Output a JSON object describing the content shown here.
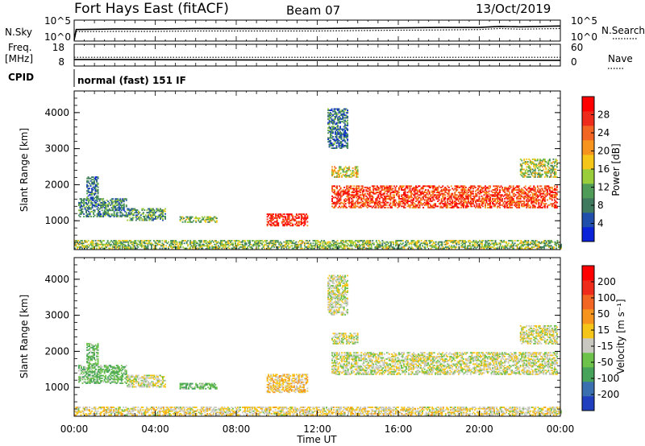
{
  "header": {
    "radar": "Fort Hays East (fitACF)",
    "beam": "Beam 07",
    "date": "13/Oct/2019"
  },
  "left_labels": {
    "nsky": "N.Sky",
    "freq_line1": "Freq.",
    "freq_line2": "[MHz]",
    "cpid": "CPID"
  },
  "right_labels": {
    "nsearch": "N.Search",
    "nave": "Nave"
  },
  "cpid_text": "normal (fast) 151 IF",
  "x_axis": {
    "title": "Time UT",
    "ticks": [
      "00:00",
      "04:00",
      "08:00",
      "12:00",
      "16:00",
      "20:00",
      "00:00"
    ]
  },
  "chart_data": [
    {
      "type": "line",
      "name": "noise panel",
      "left_ticks": [
        "10^5",
        "10^0"
      ],
      "right_ticks": [
        "10^5",
        "10^0"
      ],
      "x_hours": [
        0,
        0.1,
        2,
        4,
        6,
        8,
        10,
        12,
        14,
        16,
        18,
        20,
        21,
        22,
        24
      ],
      "series": [
        {
          "name": "N.Sky",
          "style": "solid",
          "values": [
            0.05,
            0.55,
            0.58,
            0.58,
            0.6,
            0.6,
            0.6,
            0.6,
            0.62,
            0.63,
            0.65,
            0.65,
            0.7,
            0.68,
            0.72
          ]
        },
        {
          "name": "N.Search",
          "style": "dotted",
          "values": [
            0.05,
            0.45,
            0.46,
            0.46,
            0.48,
            0.48,
            0.48,
            0.48,
            0.5,
            0.52,
            0.53,
            0.55,
            0.6,
            0.57,
            0.6
          ]
        }
      ]
    },
    {
      "type": "line",
      "name": "frequency / nave panel",
      "left_ticks": [
        "18",
        "8"
      ],
      "right_ticks": [
        "60",
        "0"
      ],
      "x_hours": [
        0,
        0.2,
        12,
        24
      ],
      "series": [
        {
          "name": "Freq.",
          "style": "solid",
          "values": [
            10.5,
            10.5,
            10.2,
            10.1
          ]
        },
        {
          "name": "Nave",
          "style": "dotted",
          "values": [
            24,
            24,
            24,
            24
          ]
        }
      ]
    },
    {
      "type": "heatmap",
      "name": "power",
      "xlabel": "",
      "ylabel": "Slant Range [km]",
      "xlim": [
        0,
        24
      ],
      "ylim": [
        200,
        4600
      ],
      "yticks": [
        1000,
        2000,
        3000,
        4000
      ],
      "colorbar": {
        "label": "Power [dB]",
        "ticks": [
          "4",
          "8",
          "12",
          "16",
          "20",
          "24",
          "28"
        ],
        "colors": [
          "#0a22d8",
          "#1f4faa",
          "#3f7a5e",
          "#4f9b58",
          "#9acd3a",
          "#f5c518",
          "#f7941d",
          "#f26522",
          "#ef2b1c",
          "#ff0000"
        ]
      },
      "regions": [
        {
          "t0": 0.2,
          "t1": 2.6,
          "r0": 1100,
          "r1": 1600,
          "level": 0.25
        },
        {
          "t0": 0.6,
          "t1": 1.2,
          "r0": 1600,
          "r1": 2200,
          "level": 0.2
        },
        {
          "t0": 2.6,
          "t1": 4.5,
          "r0": 1000,
          "r1": 1350,
          "level": 0.3
        },
        {
          "t0": 5.2,
          "t1": 7.0,
          "r0": 950,
          "r1": 1100,
          "level": 0.4
        },
        {
          "t0": 9.5,
          "t1": 11.5,
          "r0": 850,
          "r1": 1200,
          "level": 0.9
        },
        {
          "t0": 12.7,
          "t1": 23.8,
          "r0": 1350,
          "r1": 1950,
          "level": 0.85
        },
        {
          "t0": 12.7,
          "t1": 14.0,
          "r0": 2200,
          "r1": 2500,
          "level": 0.55
        },
        {
          "t0": 12.5,
          "t1": 13.5,
          "r0": 3000,
          "r1": 4100,
          "level": 0.2
        },
        {
          "t0": 22.0,
          "t1": 23.8,
          "r0": 2200,
          "r1": 2700,
          "level": 0.45
        },
        {
          "t0": 0.0,
          "t1": 24.0,
          "r0": 220,
          "r1": 450,
          "level": 0.4
        }
      ]
    },
    {
      "type": "heatmap",
      "name": "velocity",
      "xlabel": "Time UT",
      "ylabel": "Slant Range [km]",
      "xlim": [
        0,
        24
      ],
      "ylim": [
        200,
        4600
      ],
      "yticks": [
        1000,
        2000,
        3000,
        4000
      ],
      "colorbar": {
        "label": "Velocity [m s⁻¹]",
        "ticks": [
          "200",
          "100",
          "50",
          "15",
          "-15",
          "-50",
          "-100",
          "-200"
        ],
        "colors": [
          "#1f3fbf",
          "#3a6fb0",
          "#47a35a",
          "#6cc24a",
          "#c8c8c0",
          "#f5c518",
          "#f7941d",
          "#f26522",
          "#ef2b1c",
          "#ff0000"
        ]
      },
      "regions": [
        {
          "t0": 0.2,
          "t1": 2.6,
          "r0": 1100,
          "r1": 1600,
          "level": 0.3
        },
        {
          "t0": 0.6,
          "t1": 1.2,
          "r0": 1600,
          "r1": 2200,
          "level": 0.3
        },
        {
          "t0": 2.6,
          "t1": 4.5,
          "r0": 1000,
          "r1": 1350,
          "level": 0.45
        },
        {
          "t0": 5.2,
          "t1": 7.0,
          "r0": 950,
          "r1": 1100,
          "level": 0.3
        },
        {
          "t0": 9.5,
          "t1": 11.5,
          "r0": 850,
          "r1": 1350,
          "level": 0.55
        },
        {
          "t0": 12.7,
          "t1": 23.8,
          "r0": 1350,
          "r1": 1950,
          "level": 0.45
        },
        {
          "t0": 12.7,
          "t1": 14.0,
          "r0": 2200,
          "r1": 2500,
          "level": 0.45
        },
        {
          "t0": 12.5,
          "t1": 13.5,
          "r0": 3000,
          "r1": 4100,
          "level": 0.45
        },
        {
          "t0": 22.0,
          "t1": 23.8,
          "r0": 2200,
          "r1": 2700,
          "level": 0.45
        },
        {
          "t0": 0.0,
          "t1": 24.0,
          "r0": 220,
          "r1": 450,
          "level": 0.5
        }
      ]
    }
  ]
}
